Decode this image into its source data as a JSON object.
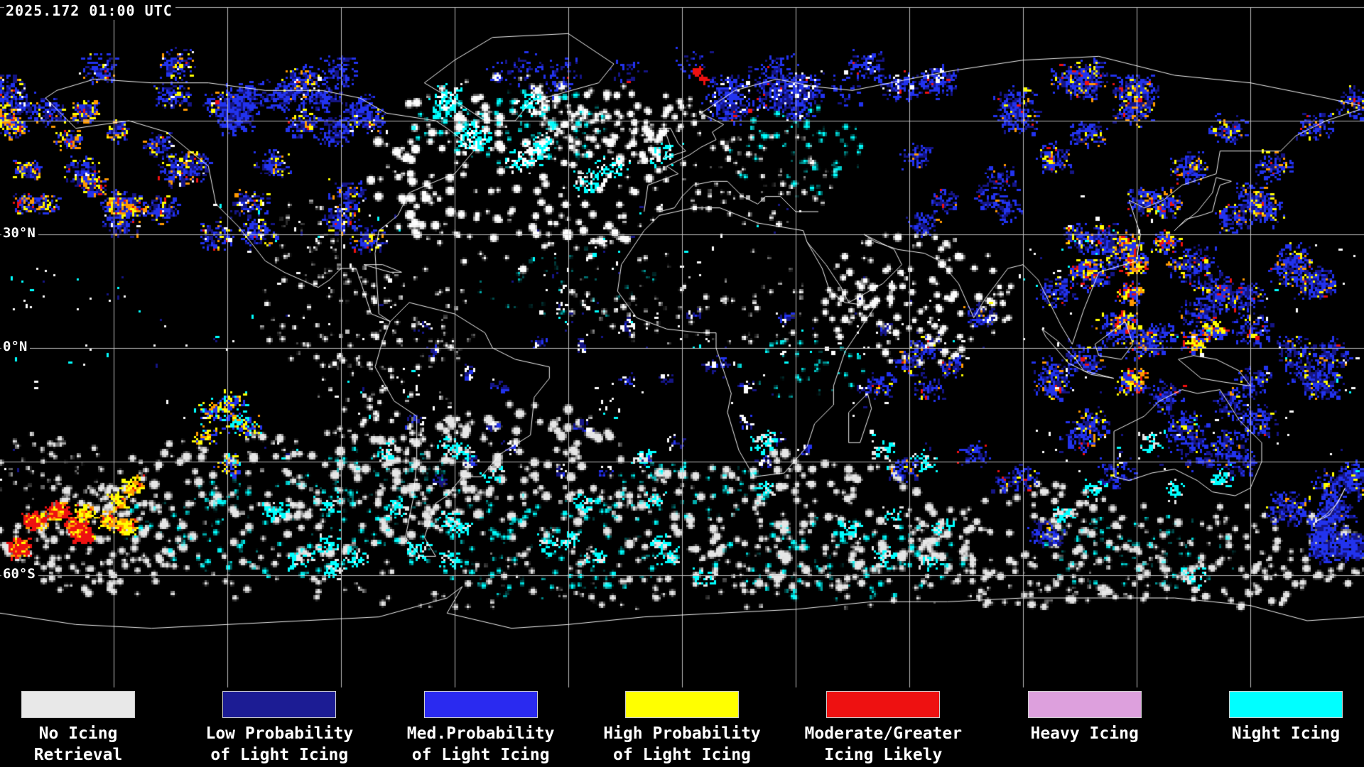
{
  "header": {
    "timestamp": "2025.172 01:00 UTC"
  },
  "map": {
    "latitude_labels": [
      {
        "text": "30°N"
      },
      {
        "text": "0°N"
      },
      {
        "text": "60°S"
      }
    ]
  },
  "legend": {
    "items": [
      {
        "line1": "No Icing",
        "line2": "Retrieval",
        "color": "#e8e8e8"
      },
      {
        "line1": "Low Probability",
        "line2": "of Light Icing",
        "color": "#1c1c94"
      },
      {
        "line1": "Med.Probability",
        "line2": "of Light Icing",
        "color": "#2a2af0"
      },
      {
        "line1": "High Probability",
        "line2": "of Light Icing",
        "color": "#ffff00"
      },
      {
        "line1": "Moderate/Greater",
        "line2": "Icing Likely",
        "color": "#ee1111"
      },
      {
        "line1": "Heavy Icing",
        "line2": "",
        "color": "#dda0dd"
      },
      {
        "line1": "Night Icing",
        "line2": "",
        "color": "#00ffff"
      }
    ]
  },
  "colors": {
    "background": "#000000",
    "cloud_white": "#fdfdfd",
    "no_icing_gray": "#e6e6e6",
    "night_icing_cyan": "#00ffff",
    "low_prob_navy": "#151585",
    "med_prob_blue": "#2233ee",
    "high_prob_yellow": "#ffff00",
    "orange_mix": "#ff9900",
    "likely_red": "#ee1111",
    "grid": "#cccccc",
    "coastline": "#ffffff"
  }
}
